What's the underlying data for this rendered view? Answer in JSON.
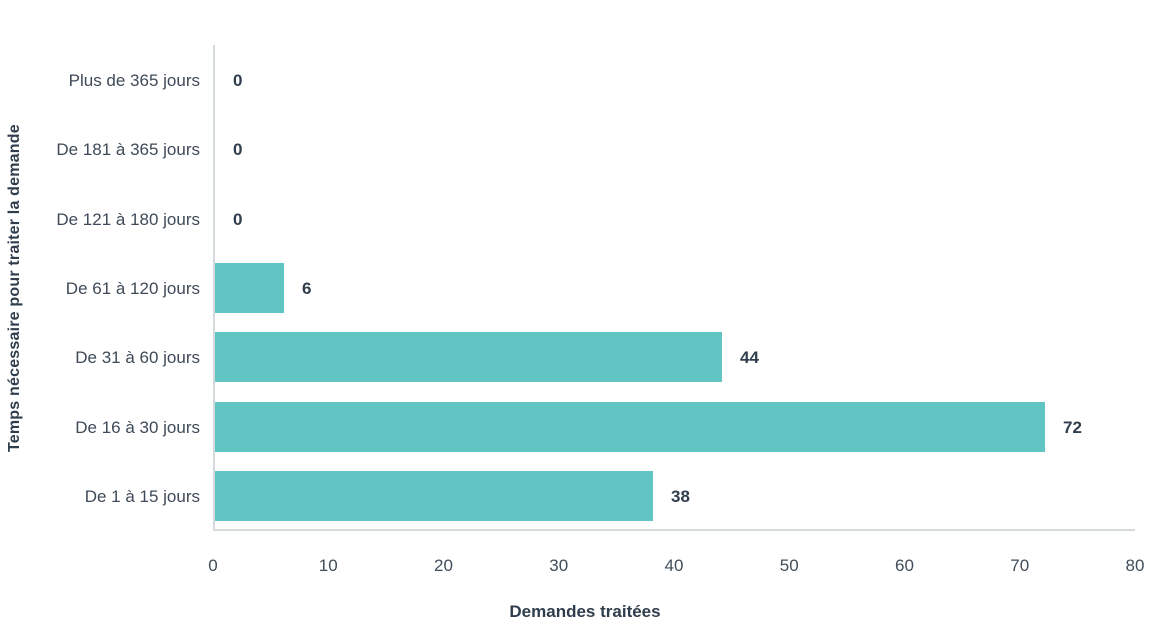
{
  "chart_data": {
    "type": "bar",
    "orientation": "horizontal",
    "title": "",
    "xlabel": "Demandes traitées",
    "ylabel": "Temps nécessaire pour traiter la demande",
    "categories": [
      "Plus de 365 jours",
      "De 181 à 365 jours",
      "De 121 à 180 jours",
      "De 61 à 120 jours",
      "De 31 à 60 jours",
      "De 16 à 30 jours",
      "De 1 à 15 jours"
    ],
    "values": [
      0,
      0,
      0,
      6,
      44,
      72,
      38
    ],
    "xlim": [
      0,
      80
    ],
    "xticks": [
      0,
      10,
      20,
      30,
      40,
      50,
      60,
      70,
      80
    ],
    "grid": false,
    "legend": null,
    "value_labels": true,
    "bar_color": "#61C6C3",
    "axis_line_color": "#D5DBDD",
    "text_color": "#2F3D4C"
  }
}
